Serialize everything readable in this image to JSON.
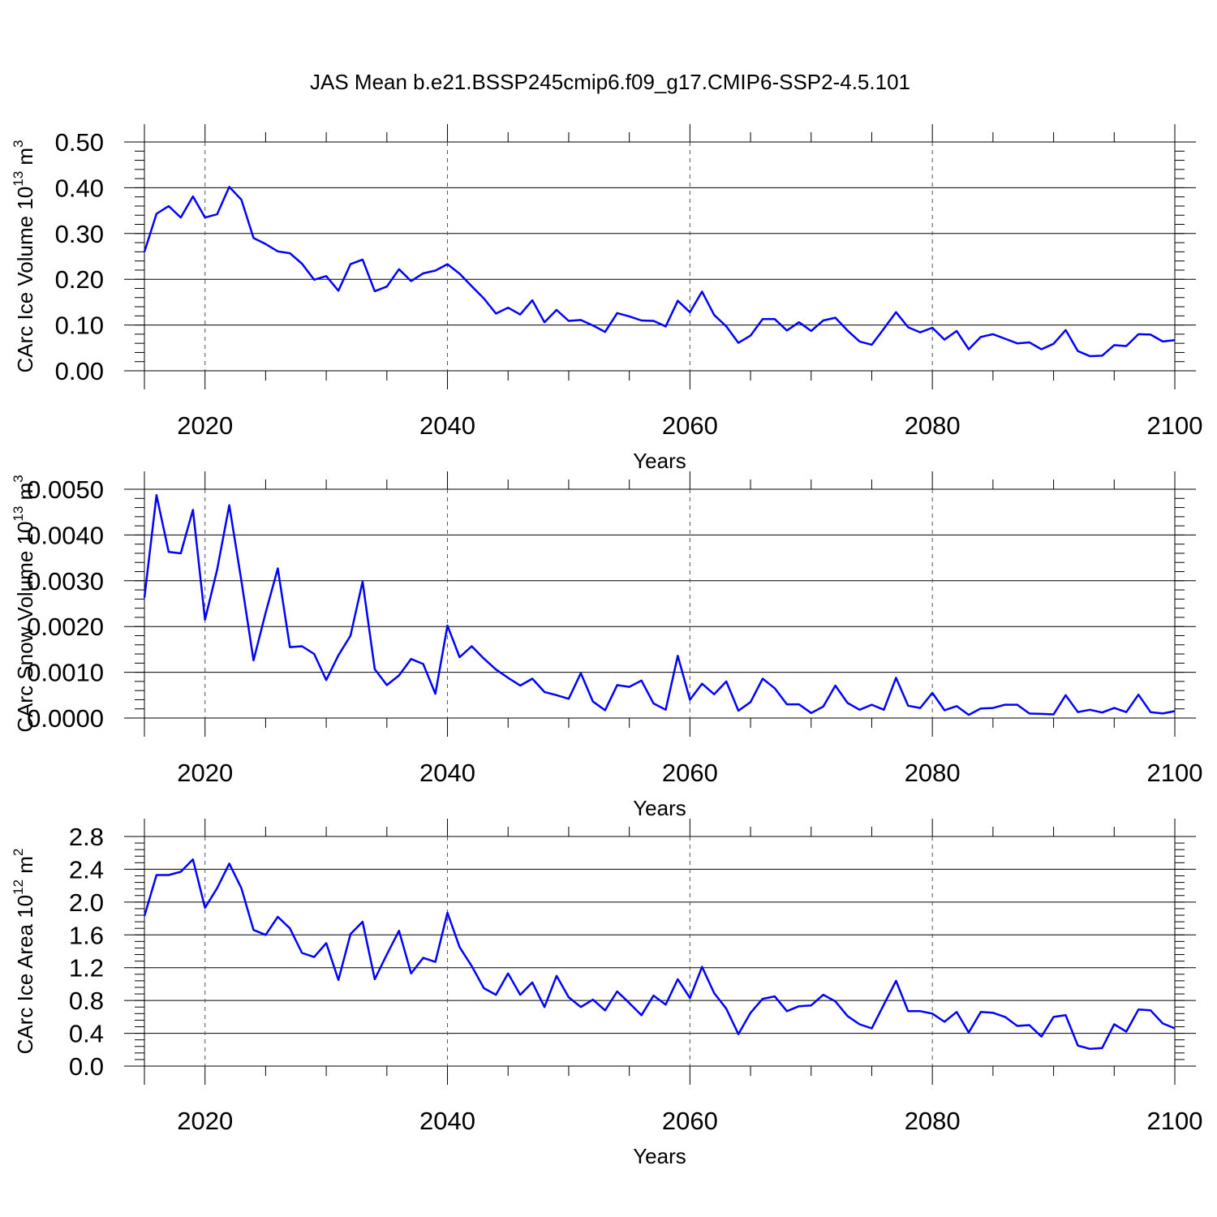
{
  "figure_title": "JAS Mean b.e21.BSSP245cmip6.f09_g17.CMIP6-SSP2-4.5.101",
  "line_color": "#0000ff",
  "chart_data": [
    {
      "type": "line",
      "ylabel": {
        "base": "CArc Ice Volume 10",
        "exp": "13",
        "unit": " m",
        "unit_exp": "3"
      },
      "xlabel": "Years",
      "xlim": [
        2015,
        2100
      ],
      "ylim": [
        0,
        0.5
      ],
      "yticks": [
        0,
        0.1,
        0.2,
        0.3,
        0.4,
        0.5
      ],
      "ytick_labels": [
        "0.00",
        "0.10",
        "0.20",
        "0.30",
        "0.40",
        "0.50"
      ],
      "yminor": 0.02,
      "xticks": [
        2020,
        2040,
        2060,
        2080,
        2100
      ],
      "xtick_labels": [
        "2020",
        "2040",
        "2060",
        "2080",
        "2100"
      ],
      "x_start": 2015,
      "values": [
        0.26,
        0.343,
        0.36,
        0.335,
        0.381,
        0.335,
        0.342,
        0.402,
        0.374,
        0.29,
        0.277,
        0.261,
        0.257,
        0.234,
        0.199,
        0.207,
        0.175,
        0.233,
        0.243,
        0.174,
        0.184,
        0.222,
        0.196,
        0.213,
        0.219,
        0.233,
        0.212,
        0.185,
        0.158,
        0.125,
        0.138,
        0.123,
        0.154,
        0.106,
        0.133,
        0.109,
        0.111,
        0.099,
        0.085,
        0.126,
        0.119,
        0.11,
        0.109,
        0.097,
        0.153,
        0.128,
        0.173,
        0.122,
        0.097,
        0.061,
        0.077,
        0.113,
        0.113,
        0.088,
        0.106,
        0.087,
        0.11,
        0.116,
        0.088,
        0.064,
        0.057,
        0.092,
        0.128,
        0.095,
        0.084,
        0.094,
        0.068,
        0.087,
        0.047,
        0.074,
        0.08,
        0.07,
        0.06,
        0.062,
        0.047,
        0.059,
        0.089,
        0.043,
        0.032,
        0.033,
        0.056,
        0.054,
        0.08,
        0.079,
        0.064,
        0.067
      ]
    },
    {
      "type": "line",
      "ylabel": {
        "base": "CArc Snow Volume 10",
        "exp": "13",
        "unit": " m",
        "unit_exp": "3"
      },
      "xlabel": "Years",
      "xlim": [
        2015,
        2100
      ],
      "ylim": [
        0,
        0.005
      ],
      "yticks": [
        0,
        0.001,
        0.002,
        0.003,
        0.004,
        0.005
      ],
      "ytick_labels": [
        "0.0000",
        "0.0010",
        "0.0020",
        "0.0030",
        "0.0040",
        "0.0050"
      ],
      "yminor": 0.0002,
      "xticks": [
        2020,
        2040,
        2060,
        2080,
        2100
      ],
      "xtick_labels": [
        "2020",
        "2040",
        "2060",
        "2080",
        "2100"
      ],
      "x_start": 2015,
      "values": [
        0.00263,
        0.00487,
        0.00363,
        0.0036,
        0.00455,
        0.00215,
        0.00324,
        0.00465,
        0.003,
        0.00126,
        0.0023,
        0.00327,
        0.00155,
        0.00157,
        0.0014,
        0.00083,
        0.00137,
        0.0018,
        0.00298,
        0.00107,
        0.00072,
        0.00093,
        0.00129,
        0.00118,
        0.00053,
        0.00202,
        0.00133,
        0.00157,
        0.0013,
        0.00106,
        0.00088,
        0.00071,
        0.00086,
        0.00057,
        0.0005,
        0.00042,
        0.00098,
        0.00036,
        0.00017,
        0.00072,
        0.00068,
        0.00082,
        0.00032,
        0.00018,
        0.00136,
        0.0004,
        0.00075,
        0.00052,
        0.0008,
        0.00016,
        0.00035,
        0.00086,
        0.00065,
        0.0003,
        0.0003,
        0.00011,
        0.00025,
        0.00071,
        0.00033,
        0.00018,
        0.00029,
        0.00018,
        0.00088,
        0.00027,
        0.00022,
        0.00055,
        0.00017,
        0.00026,
        7e-05,
        0.00021,
        0.00022,
        0.00029,
        0.00029,
        0.0001,
        9e-05,
        8e-05,
        0.0005,
        0.00013,
        0.00018,
        0.00012,
        0.00022,
        0.00013,
        0.00051,
        0.00013,
        0.0001,
        0.00015
      ]
    },
    {
      "type": "line",
      "ylabel": {
        "base": "CArc Ice Area 10",
        "exp": "12",
        "unit": " m",
        "unit_exp": "2"
      },
      "xlabel": "Years",
      "xlim": [
        2015,
        2100
      ],
      "ylim": [
        0,
        2.8
      ],
      "yticks": [
        0,
        0.4,
        0.8,
        1.2,
        1.6,
        2.0,
        2.4,
        2.8
      ],
      "ytick_labels": [
        "0.0",
        "0.4",
        "0.8",
        "1.2",
        "1.6",
        "2.0",
        "2.4",
        "2.8"
      ],
      "yminor": 0.08,
      "xticks": [
        2020,
        2040,
        2060,
        2080,
        2100
      ],
      "xtick_labels": [
        "2020",
        "2040",
        "2060",
        "2080",
        "2100"
      ],
      "x_start": 2015,
      "values": [
        1.83,
        2.33,
        2.33,
        2.37,
        2.52,
        1.93,
        2.17,
        2.47,
        2.17,
        1.66,
        1.6,
        1.82,
        1.68,
        1.38,
        1.33,
        1.5,
        1.05,
        1.61,
        1.76,
        1.06,
        1.36,
        1.65,
        1.13,
        1.32,
        1.27,
        1.87,
        1.45,
        1.22,
        0.95,
        0.87,
        1.13,
        0.87,
        1.02,
        0.72,
        1.1,
        0.84,
        0.72,
        0.81,
        0.68,
        0.91,
        0.77,
        0.62,
        0.86,
        0.75,
        1.06,
        0.83,
        1.21,
        0.89,
        0.7,
        0.39,
        0.65,
        0.82,
        0.85,
        0.67,
        0.73,
        0.74,
        0.87,
        0.79,
        0.61,
        0.51,
        0.46,
        0.75,
        1.04,
        0.67,
        0.67,
        0.64,
        0.54,
        0.66,
        0.41,
        0.66,
        0.65,
        0.6,
        0.49,
        0.5,
        0.36,
        0.6,
        0.62,
        0.25,
        0.21,
        0.22,
        0.51,
        0.42,
        0.69,
        0.68,
        0.52,
        0.46
      ]
    }
  ]
}
